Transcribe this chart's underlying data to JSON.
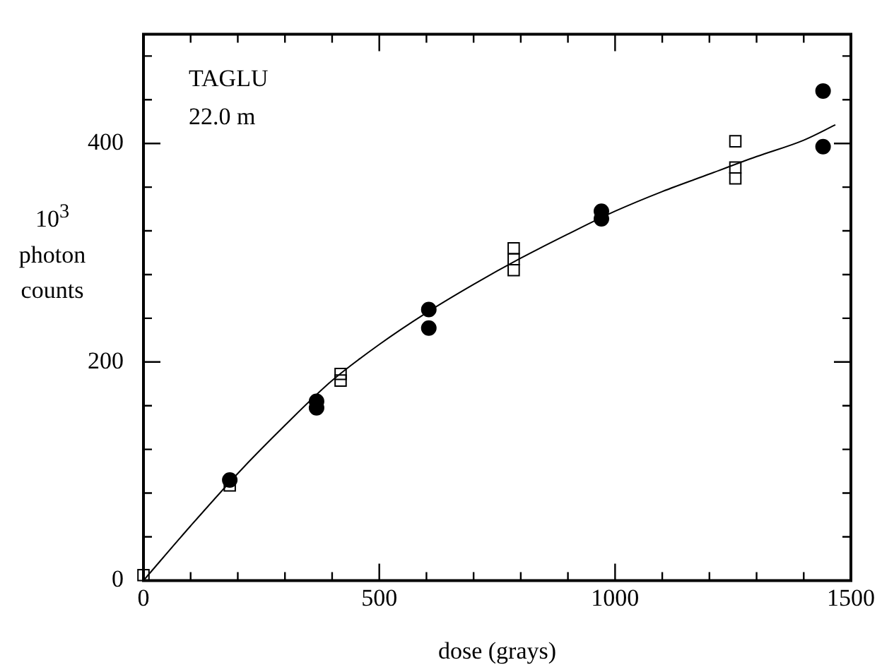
{
  "chart_data": {
    "type": "scatter",
    "xlabel": "dose (grays)",
    "ylabel": "10$^{3}$ photon counts",
    "annotations": [
      "TAGLU",
      "22.0 m"
    ],
    "xlim": [
      0,
      1500
    ],
    "xticks": [
      0,
      {
        "value": 100,
        "label": null
      },
      {
        "value": 200,
        "label": null
      },
      {
        "value": 300,
        "label": null
      },
      {
        "value": 400,
        "label": null
      },
      500,
      {
        "value": 600,
        "label": null
      },
      {
        "value": 700,
        "label": null
      },
      {
        "value": 800,
        "label": null
      },
      {
        "value": 900,
        "label": null
      },
      1000,
      {
        "value": 1100,
        "label": null
      },
      {
        "value": 1200,
        "label": null
      },
      {
        "value": 1300,
        "label": null
      },
      {
        "value": 1400,
        "label": null
      },
      1500
    ],
    "ylim": [
      0,
      500
    ],
    "yticks": [
      0,
      {
        "value": 40,
        "label": null
      },
      {
        "value": 80,
        "label": null
      },
      {
        "value": 120,
        "label": null
      },
      {
        "value": 160,
        "label": null
      },
      200,
      {
        "value": 240,
        "label": null
      },
      {
        "value": 280,
        "label": null
      },
      {
        "value": 320,
        "label": null
      },
      {
        "value": 360,
        "label": null
      },
      400,
      {
        "value": 440,
        "label": null
      },
      {
        "value": 480,
        "label": null
      }
    ],
    "grid": false,
    "legend": false,
    "series": [
      {
        "type": "scatter",
        "marker": "square",
        "color": "#000000",
        "x": [
          0,
          183,
          418,
          418,
          785,
          785,
          785,
          1255,
          1255,
          1255
        ],
        "values": [
          5,
          87,
          189,
          183,
          304,
          294,
          284,
          402,
          378,
          368
        ]
      },
      {
        "type": "scatter",
        "marker": "circle",
        "color": "#000000",
        "x": [
          183,
          367,
          367,
          605,
          605,
          971,
          971,
          1441,
          1441
        ],
        "values": [
          92,
          164,
          158,
          248,
          231,
          338,
          331,
          448,
          397
        ]
      },
      {
        "type": "line",
        "marker": "none",
        "color": "#000000",
        "x": [
          0,
          100,
          200,
          300,
          400,
          500,
          600,
          700,
          800,
          900,
          1000,
          1100,
          1200,
          1300,
          1400,
          1467
        ],
        "values": [
          0,
          50,
          98,
          142,
          183,
          216,
          245,
          271,
          295,
          317,
          338,
          356,
          372,
          388,
          403,
          417
        ]
      }
    ]
  }
}
